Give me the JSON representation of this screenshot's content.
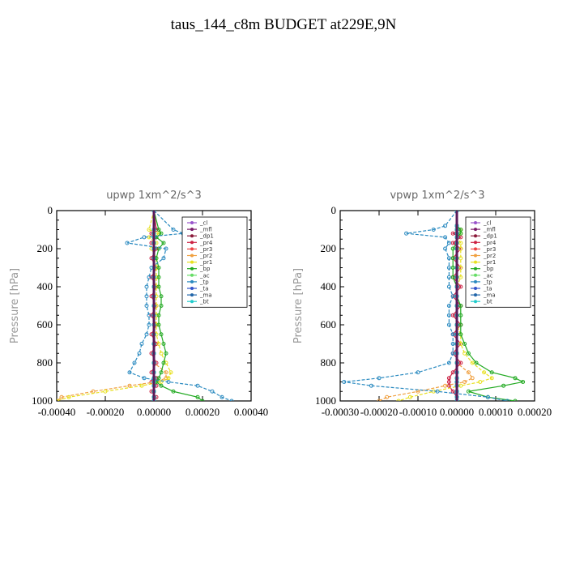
{
  "figure": {
    "title": "taus_144_c8m  BUDGET at229E,9N"
  },
  "legend": [
    {
      "label": "_cl",
      "color": "#9955cc"
    },
    {
      "label": "_mfl",
      "color": "#7a1a6a"
    },
    {
      "label": "_dp1",
      "color": "#8b1a3a"
    },
    {
      "label": "_pr4",
      "color": "#cc2244"
    },
    {
      "label": "_pr3",
      "color": "#ee4444"
    },
    {
      "label": "_pr2",
      "color": "#f0a040"
    },
    {
      "label": "_pr1",
      "color": "#e8e020"
    },
    {
      "label": "_bp",
      "color": "#22aa22"
    },
    {
      "label": "_ac",
      "color": "#66dd66"
    },
    {
      "label": "_tp",
      "color": "#2a8ac0"
    },
    {
      "label": "_ta",
      "color": "#3355cc"
    },
    {
      "label": "_ma",
      "color": "#2266aa"
    },
    {
      "label": "_bt",
      "color": "#22cccc"
    }
  ],
  "chart_data": [
    {
      "type": "line",
      "title": "upwp   1xm^2/s^3",
      "ylabel": "Pressure [hPa]",
      "xlabel": "",
      "xlim": [
        -0.0004,
        0.0004
      ],
      "ylim": [
        1000,
        0
      ],
      "y_inverted": true,
      "xticks": [
        "-0.00040",
        "-0.00020",
        "0.00000",
        "0.00020",
        "0.00040"
      ],
      "xtick_values": [
        -0.0004,
        -0.0002,
        0,
        0.0002,
        0.0004
      ],
      "yticks": [
        "0",
        "200",
        "400",
        "600",
        "800",
        "1000"
      ],
      "ytick_values": [
        0,
        200,
        400,
        600,
        800,
        1000
      ],
      "legend_position": "upper-right",
      "pressure": [
        0,
        100,
        120,
        140,
        170,
        200,
        250,
        300,
        350,
        400,
        450,
        500,
        550,
        600,
        650,
        700,
        750,
        800,
        850,
        880,
        900,
        920,
        950,
        980,
        1000
      ],
      "series": [
        {
          "name": "_cl",
          "values": [
            0,
            0,
            0,
            0,
            0,
            0,
            0,
            0,
            0,
            0,
            0,
            0,
            0,
            0,
            0,
            0,
            0,
            0,
            0,
            0,
            0,
            0,
            0,
            0,
            0
          ]
        },
        {
          "name": "_mfl",
          "values": [
            0,
            0,
            0,
            0,
            0,
            0,
            0,
            0,
            0,
            0,
            0,
            0,
            0,
            0,
            0,
            0,
            0,
            0,
            0,
            0,
            0,
            0,
            0,
            0,
            0
          ]
        },
        {
          "name": "_dp1",
          "values": [
            0,
            0,
            0,
            0,
            0,
            0,
            0,
            0,
            0,
            0,
            0,
            0,
            0,
            0,
            0,
            0,
            0,
            0,
            0,
            0,
            0,
            0,
            0,
            0,
            0
          ]
        },
        {
          "name": "_pr4",
          "values": [
            0,
            1e-05,
            -1e-05,
            1e-05,
            -1e-05,
            1e-05,
            -1e-05,
            1e-05,
            -1e-05,
            1e-05,
            -1e-05,
            1e-05,
            -1e-05,
            1e-05,
            -1e-05,
            1e-05,
            -1e-05,
            1e-05,
            -1e-05,
            1e-05,
            -1e-05,
            1e-05,
            -1e-05,
            1e-05,
            0
          ]
        },
        {
          "name": "_pr3",
          "values": [
            0,
            0,
            0,
            0,
            0,
            0,
            0,
            0,
            0,
            0,
            0,
            0,
            0,
            0,
            0,
            0,
            0,
            0,
            0,
            0,
            0,
            0,
            0,
            0,
            0
          ]
        },
        {
          "name": "_pr2",
          "values": [
            0,
            0,
            0,
            0,
            0,
            0,
            0,
            0,
            0,
            0,
            0,
            0,
            0,
            0,
            0,
            0,
            0,
            0,
            5e-05,
            5e-05,
            1e-05,
            -0.0001,
            -0.00025,
            -0.00038,
            -0.0004
          ]
        },
        {
          "name": "_pr1",
          "values": [
            0,
            -2e-05,
            2e-05,
            -2e-05,
            1e-05,
            -1e-05,
            1e-05,
            1e-05,
            1e-05,
            1e-05,
            1e-05,
            1e-05,
            1e-05,
            1e-05,
            1e-05,
            2e-05,
            3e-05,
            5e-05,
            7e-05,
            6e-05,
            3e-05,
            -5e-05,
            -0.0002,
            -0.00035,
            -0.0004
          ]
        },
        {
          "name": "_bp",
          "values": [
            0,
            2e-05,
            3e-05,
            1e-05,
            4e-05,
            2e-05,
            1e-05,
            2e-05,
            2e-05,
            2e-05,
            3e-05,
            3e-05,
            2e-05,
            2e-05,
            3e-05,
            4e-05,
            5e-05,
            4e-05,
            3e-05,
            2e-05,
            1e-05,
            3e-05,
            8e-05,
            0.00018,
            0.0002
          ]
        },
        {
          "name": "_ac",
          "values": [
            0,
            0,
            0,
            0,
            0,
            0,
            0,
            0,
            0,
            0,
            0,
            0,
            0,
            0,
            0,
            0,
            0,
            0,
            0,
            0,
            0,
            0,
            0,
            0,
            0
          ]
        },
        {
          "name": "_tp",
          "values": [
            0,
            8e-05,
            0.00012,
            -4e-05,
            -0.00011,
            5e-05,
            4e-05,
            -1e-05,
            -2e-05,
            -3e-05,
            -3e-05,
            -3e-05,
            -2e-05,
            -2e-05,
            -3e-05,
            -5e-05,
            -6e-05,
            -8e-05,
            -0.0001,
            -4e-05,
            6e-05,
            0.00018,
            0.00024,
            0.00028,
            0.00032
          ]
        },
        {
          "name": "_ta",
          "values": [
            0,
            0,
            0,
            0,
            0,
            0,
            0,
            0,
            0,
            0,
            0,
            0,
            0,
            0,
            0,
            0,
            0,
            0,
            0,
            0,
            0,
            0,
            0,
            0,
            0
          ]
        },
        {
          "name": "_ma",
          "values": [
            0,
            0,
            0,
            0,
            0,
            0,
            0,
            0,
            0,
            0,
            0,
            0,
            0,
            0,
            0,
            0,
            0,
            0,
            0,
            0,
            0,
            0,
            0,
            0,
            0
          ]
        },
        {
          "name": "_bt",
          "values": [
            0,
            0,
            0,
            0,
            0,
            0,
            0,
            0,
            0,
            0,
            0,
            0,
            0,
            0,
            0,
            0,
            0,
            0,
            0,
            0,
            0,
            0,
            0,
            0,
            0
          ]
        }
      ]
    },
    {
      "type": "line",
      "title": "vpwp   1xm^2/s^3",
      "ylabel": "Pressure [hPa]",
      "xlabel": "",
      "xlim": [
        -0.0003,
        0.0002
      ],
      "ylim": [
        1000,
        0
      ],
      "y_inverted": true,
      "xticks": [
        "-0.00030",
        "-0.00020",
        "-0.00010",
        "0.00000",
        "0.00010",
        "0.00020"
      ],
      "xtick_values": [
        -0.0003,
        -0.0002,
        -0.0001,
        0,
        0.0001,
        0.0002
      ],
      "yticks": [
        "0",
        "200",
        "400",
        "600",
        "800",
        "1000"
      ],
      "ytick_values": [
        0,
        200,
        400,
        600,
        800,
        1000
      ],
      "legend_position": "upper-right",
      "pressure": [
        0,
        80,
        100,
        120,
        140,
        170,
        200,
        250,
        300,
        350,
        400,
        450,
        500,
        550,
        600,
        650,
        700,
        750,
        800,
        850,
        880,
        900,
        920,
        950,
        980,
        1000
      ],
      "series": [
        {
          "name": "_cl",
          "values": [
            0,
            0,
            0,
            0,
            0,
            0,
            0,
            0,
            0,
            0,
            0,
            0,
            0,
            0,
            0,
            0,
            0,
            0,
            0,
            0,
            0,
            0,
            0,
            0,
            0,
            0
          ]
        },
        {
          "name": "_mfl",
          "values": [
            0,
            0,
            0,
            0,
            0,
            0,
            0,
            0,
            0,
            0,
            0,
            0,
            0,
            0,
            0,
            0,
            0,
            0,
            0,
            0,
            0,
            0,
            0,
            0,
            0,
            0
          ]
        },
        {
          "name": "_dp1",
          "values": [
            0,
            0,
            0,
            0,
            0,
            0,
            0,
            0,
            0,
            0,
            0,
            0,
            0,
            0,
            0,
            0,
            0,
            0,
            0,
            0,
            0,
            0,
            0,
            0,
            0,
            0
          ]
        },
        {
          "name": "_pr4",
          "values": [
            0,
            0,
            1e-05,
            -1e-05,
            1e-05,
            -1e-05,
            1e-05,
            -1e-05,
            1e-05,
            -1e-05,
            1e-05,
            -1e-05,
            1e-05,
            -1e-05,
            1e-05,
            -1e-05,
            1e-05,
            -1e-05,
            1e-05,
            -1e-05,
            -2e-05,
            -2e-05,
            -2e-05,
            -1e-05,
            0,
            0
          ]
        },
        {
          "name": "_pr3",
          "values": [
            0,
            0,
            0,
            0,
            0,
            0,
            0,
            0,
            0,
            0,
            0,
            0,
            0,
            0,
            0,
            0,
            0,
            0,
            0,
            0,
            0,
            0,
            0,
            0,
            0,
            0
          ]
        },
        {
          "name": "_pr2",
          "values": [
            0,
            0,
            0,
            0,
            0,
            0,
            0,
            0,
            0,
            0,
            0,
            0,
            0,
            0,
            0,
            0,
            0,
            0,
            0,
            3e-05,
            4e-05,
            2e-05,
            -3e-05,
            -0.0001,
            -0.00018,
            -0.0002
          ]
        },
        {
          "name": "_pr1",
          "values": [
            0,
            0,
            1e-05,
            1e-05,
            0,
            1e-05,
            1e-05,
            1e-05,
            1e-05,
            1e-05,
            0,
            0,
            0,
            0,
            0,
            1e-05,
            1e-05,
            2e-05,
            4e-05,
            7e-05,
            9e-05,
            6e-05,
            1e-05,
            -6e-05,
            -0.00012,
            -0.00015
          ]
        },
        {
          "name": "_bp",
          "values": [
            0,
            0,
            1e-05,
            1e-05,
            0,
            0,
            -1e-05,
            -1e-05,
            -1e-05,
            -1e-05,
            0,
            0,
            1e-05,
            1e-05,
            1e-05,
            1e-05,
            2e-05,
            3e-05,
            5e-05,
            9e-05,
            0.00015,
            0.00017,
            0.00012,
            3e-05,
            8e-05,
            0.00015
          ]
        },
        {
          "name": "_ac",
          "values": [
            0,
            0,
            0,
            0,
            0,
            0,
            0,
            0,
            0,
            0,
            0,
            0,
            0,
            0,
            0,
            0,
            0,
            0,
            0,
            0,
            0,
            0,
            0,
            0,
            0,
            0
          ]
        },
        {
          "name": "_tp",
          "values": [
            0,
            -3e-05,
            -6e-05,
            -0.00013,
            -3e-05,
            -2e-05,
            -3e-05,
            -2e-05,
            -2e-05,
            -2e-05,
            -2e-05,
            -1e-05,
            -2e-05,
            -2e-05,
            -2e-05,
            -1e-05,
            -1e-05,
            -1e-05,
            -2e-05,
            -0.0001,
            -0.0002,
            -0.00029,
            -0.00022,
            -5e-05,
            8e-05,
            0.00013
          ]
        },
        {
          "name": "_ta",
          "values": [
            0,
            0,
            0,
            0,
            0,
            0,
            0,
            0,
            0,
            0,
            0,
            0,
            0,
            0,
            0,
            0,
            0,
            0,
            0,
            0,
            0,
            0,
            0,
            0,
            0,
            0
          ]
        },
        {
          "name": "_ma",
          "values": [
            0,
            0,
            0,
            0,
            0,
            0,
            0,
            0,
            0,
            0,
            0,
            0,
            0,
            0,
            0,
            0,
            0,
            0,
            0,
            0,
            0,
            0,
            0,
            0,
            0,
            0
          ]
        },
        {
          "name": "_bt",
          "values": [
            0,
            0,
            0,
            0,
            0,
            0,
            0,
            0,
            0,
            0,
            0,
            0,
            0,
            0,
            0,
            0,
            0,
            0,
            0,
            0,
            0,
            0,
            0,
            0,
            0,
            0
          ]
        }
      ]
    }
  ]
}
